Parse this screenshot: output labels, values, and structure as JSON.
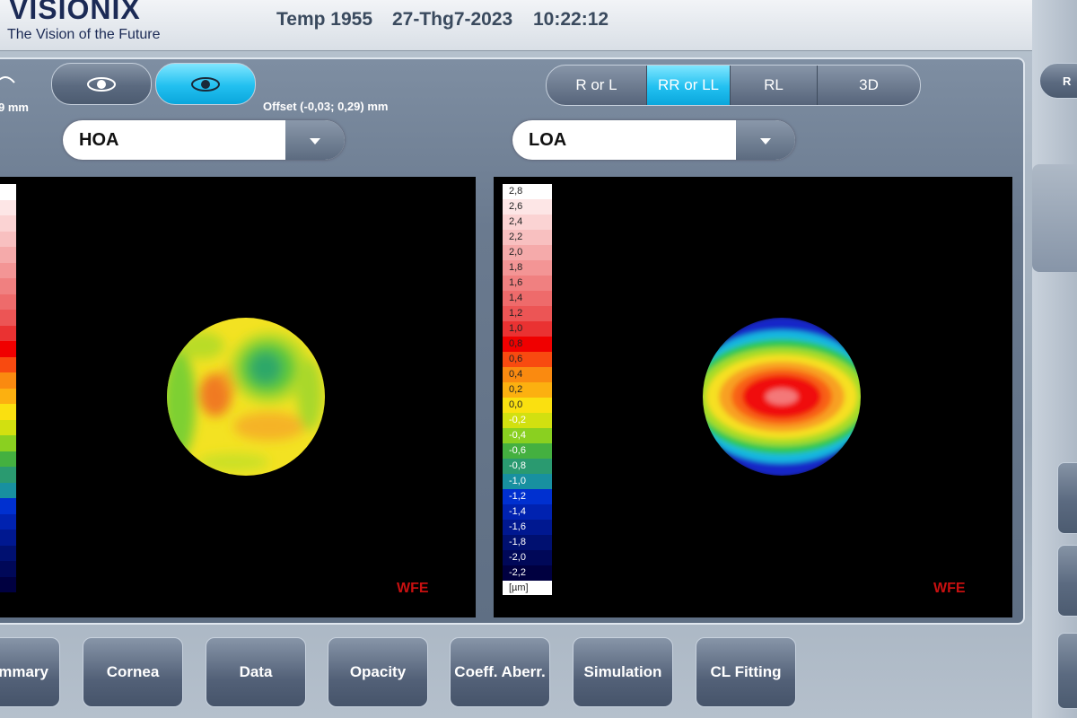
{
  "header": {
    "logo": "VISIONIX",
    "tagline": "The Vision of the Future",
    "temp": "Temp 1955",
    "date": "27-Thg7-2023",
    "time": "10:22:12"
  },
  "left_panel": {
    "size_label": "9 mm",
    "offset": "Offset (-0,03; 0,29) mm",
    "map_type": "HOA",
    "map_label": "WFE"
  },
  "right_panel": {
    "view_buttons": [
      "R or L",
      "RR or LL",
      "RL",
      "3D"
    ],
    "map_type": "LOA",
    "scale": [
      "2,8",
      "2,6",
      "2,4",
      "2,2",
      "2,0",
      "1,8",
      "1,6",
      "1,4",
      "1,2",
      "1,0",
      "0,8",
      "0,6",
      "0,4",
      "0,2",
      "0,0",
      "-0,2",
      "-0,4",
      "-0,6",
      "-0,8",
      "-1,0",
      "-1,2",
      "-1,4",
      "-1,6",
      "-1,8",
      "-2,0",
      "-2,2"
    ],
    "unit": "[µm]",
    "map_label": "WFE"
  },
  "tabs": [
    "mmary",
    "Cornea",
    "Data",
    "Opacity",
    "Coeff. Aberr.",
    "Simulation",
    "CL Fitting"
  ],
  "side": {
    "button": "R"
  }
}
